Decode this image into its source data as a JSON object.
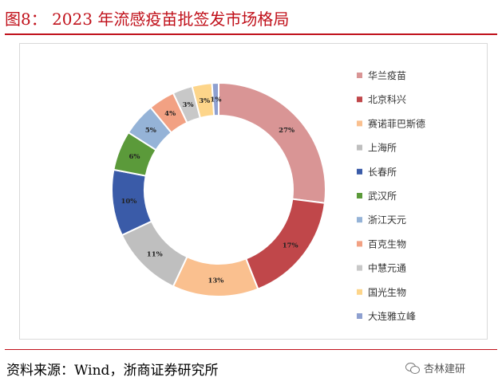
{
  "figure": {
    "title": "图8： 2023 年流感疫苗批签发市场格局",
    "source": "资料来源：Wind，浙商证券研究所",
    "watermark": "杏林建研"
  },
  "chart_data": {
    "type": "pie",
    "style": "donut",
    "title": "",
    "legend_position": "right",
    "categories": [
      "华兰疫苗",
      "北京科兴",
      "赛诺菲巴斯德",
      "上海所",
      "长春所",
      "武汉所",
      "浙江天元",
      "百克生物",
      "中慧元通",
      "国光生物",
      "大连雅立峰"
    ],
    "values": [
      27,
      17,
      13,
      11,
      10,
      6,
      5,
      4,
      3,
      3,
      1
    ],
    "labels": [
      "27%",
      "17%",
      "13%",
      "11%",
      "10%",
      "6%",
      "5%",
      "4%",
      "3%",
      "3%",
      "1%"
    ],
    "colors": [
      "#d99595",
      "#c0474a",
      "#fac08f",
      "#bfbfbf",
      "#3a5ba8",
      "#5b9a3a",
      "#95b3d7",
      "#f2a183",
      "#c8c8c8",
      "#fdd58a",
      "#8ea0d0"
    ]
  }
}
